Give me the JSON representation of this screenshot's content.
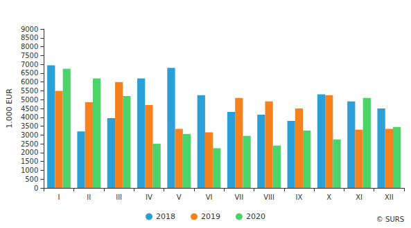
{
  "chart_data": {
    "type": "bar",
    "y_label": "1.000 EUR",
    "categories": [
      "I",
      "II",
      "III",
      "IV",
      "V",
      "VI",
      "VII",
      "VIII",
      "IX",
      "X",
      "XI",
      "XII"
    ],
    "series": [
      {
        "name": "2018",
        "color": "#2b9fd7",
        "values": [
          6950,
          3200,
          3950,
          6200,
          6800,
          5250,
          4300,
          4150,
          3800,
          5300,
          4900,
          4500
        ]
      },
      {
        "name": "2019",
        "color": "#f5821f",
        "values": [
          5500,
          4850,
          6000,
          4700,
          3350,
          3150,
          5100,
          4900,
          4500,
          5250,
          3300,
          3350
        ]
      },
      {
        "name": "2020",
        "color": "#4cd46b",
        "values": [
          6750,
          6200,
          5200,
          2500,
          3050,
          2250,
          2950,
          2400,
          3250,
          2750,
          5100,
          3450
        ]
      }
    ],
    "ylim": [
      0,
      9000
    ],
    "yticks": [
      0,
      500,
      1000,
      1500,
      2000,
      2500,
      3000,
      3500,
      4000,
      4500,
      5000,
      5500,
      6000,
      6500,
      7000,
      7500,
      8000,
      8500,
      9000
    ],
    "grid": false,
    "legend": "bottom",
    "annotations": [
      "© SURS"
    ]
  }
}
